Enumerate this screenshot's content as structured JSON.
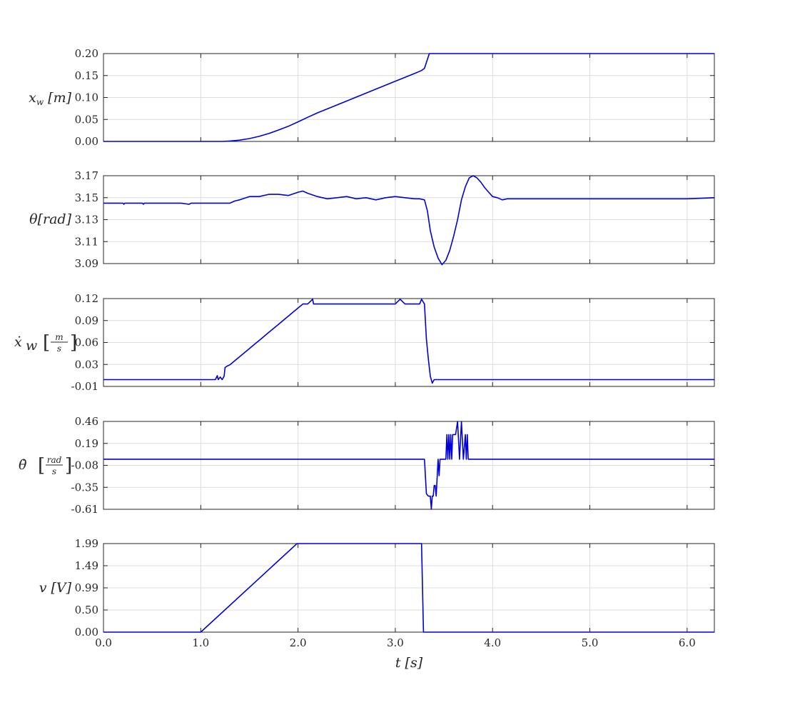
{
  "chart_data": [
    {
      "type": "line",
      "ylabel": {
        "sym": "x",
        "sub": "w",
        "unit": "[m]"
      },
      "ylim": [
        0.0,
        0.2
      ],
      "yticks": [
        "0.00",
        "0.05",
        "0.10",
        "0.15",
        "0.20"
      ],
      "xlim": [
        0,
        6.28
      ],
      "grid": true,
      "series": [
        {
          "color": "#0000d8",
          "x": [
            0,
            1.22,
            1.3,
            1.4,
            1.5,
            1.6,
            1.7,
            1.8,
            1.9,
            2.0,
            2.1,
            2.2,
            2.4,
            2.6,
            2.8,
            3.0,
            3.2,
            3.27,
            3.3,
            3.35,
            6.28
          ],
          "y": [
            0,
            0,
            0.001,
            0.003,
            0.0065,
            0.0115,
            0.018,
            0.026,
            0.0345,
            0.0445,
            0.055,
            0.065,
            0.083,
            0.101,
            0.119,
            0.137,
            0.155,
            0.1615,
            0.1665,
            0.2,
            0.2
          ]
        }
      ]
    },
    {
      "type": "line",
      "ylabel": {
        "sym": "θ",
        "unit": "[rad]"
      },
      "ylim": [
        3.09,
        3.17
      ],
      "yticks": [
        "3.09",
        "3.11",
        "3.13",
        "3.15",
        "3.17"
      ],
      "xlim": [
        0,
        6.28
      ],
      "grid": true,
      "series": [
        {
          "color": "#0000d8",
          "x": [
            0,
            0.2,
            0.21,
            0.22,
            0.4,
            0.41,
            0.42,
            0.6,
            0.8,
            0.88,
            0.9,
            1.0,
            1.1,
            1.2,
            1.3,
            1.35,
            1.4,
            1.5,
            1.6,
            1.7,
            1.8,
            1.9,
            2.0,
            2.05,
            2.1,
            2.2,
            2.3,
            2.4,
            2.5,
            2.6,
            2.7,
            2.8,
            2.9,
            3.0,
            3.1,
            3.2,
            3.25,
            3.3,
            3.33,
            3.36,
            3.4,
            3.44,
            3.48,
            3.52,
            3.56,
            3.6,
            3.64,
            3.68,
            3.72,
            3.76,
            3.8,
            3.84,
            3.88,
            3.92,
            3.96,
            4.0,
            4.05,
            4.1,
            4.15,
            4.2,
            4.3,
            4.5,
            6.0,
            6.28
          ],
          "y": [
            3.145,
            3.145,
            3.144,
            3.145,
            3.145,
            3.144,
            3.145,
            3.145,
            3.145,
            3.144,
            3.145,
            3.145,
            3.145,
            3.145,
            3.145,
            3.147,
            3.148,
            3.151,
            3.151,
            3.153,
            3.153,
            3.152,
            3.155,
            3.156,
            3.154,
            3.151,
            3.149,
            3.15,
            3.151,
            3.149,
            3.15,
            3.148,
            3.15,
            3.151,
            3.15,
            3.149,
            3.149,
            3.148,
            3.138,
            3.12,
            3.105,
            3.095,
            3.089,
            3.093,
            3.102,
            3.115,
            3.13,
            3.148,
            3.16,
            3.168,
            3.17,
            3.168,
            3.164,
            3.159,
            3.155,
            3.151,
            3.15,
            3.148,
            3.149,
            3.149,
            3.149,
            3.149,
            3.149,
            3.15
          ]
        }
      ]
    },
    {
      "type": "line",
      "ylabel": {
        "sym": "ẋ",
        "sub": "w",
        "unitNum": "m",
        "unitDen": "s"
      },
      "ylim": [
        -0.01,
        0.12
      ],
      "yticks": [
        "-0.01",
        "0.03",
        "0.06",
        "0.09",
        "0.12"
      ],
      "xlim": [
        0,
        6.28
      ],
      "grid": true,
      "series": [
        {
          "color": "#0000d8",
          "x": [
            0,
            1.15,
            1.17,
            1.18,
            1.2,
            1.22,
            1.24,
            1.25,
            1.27,
            1.3,
            1.35,
            1.4,
            1.45,
            1.5,
            1.55,
            1.6,
            1.65,
            1.7,
            1.75,
            1.8,
            1.85,
            1.9,
            1.95,
            2.0,
            2.05,
            2.1,
            2.15,
            2.16,
            2.2,
            2.25,
            2.3,
            2.4,
            2.5,
            2.6,
            2.7,
            2.8,
            2.9,
            3.0,
            3.05,
            3.1,
            3.15,
            3.2,
            3.25,
            3.27,
            3.3,
            3.32,
            3.34,
            3.36,
            3.38,
            3.4,
            3.45,
            3.5,
            6.28
          ],
          "y": [
            0,
            0,
            0.006,
            0,
            0.004,
            0,
            0.005,
            0.018,
            0.02,
            0.022,
            0.028,
            0.034,
            0.04,
            0.046,
            0.052,
            0.058,
            0.064,
            0.07,
            0.076,
            0.082,
            0.088,
            0.094,
            0.1,
            0.106,
            0.112,
            0.112,
            0.119,
            0.112,
            0.112,
            0.112,
            0.112,
            0.112,
            0.112,
            0.112,
            0.112,
            0.112,
            0.112,
            0.112,
            0.119,
            0.112,
            0.112,
            0.112,
            0.112,
            0.119,
            0.112,
            0.06,
            0.03,
            0.005,
            -0.005,
            0,
            0,
            0,
            0
          ]
        }
      ]
    },
    {
      "type": "line",
      "ylabel": {
        "sym": "θ̇",
        "unitNum": "rad",
        "unitDen": "s"
      },
      "ylim": [
        -0.61,
        0.46
      ],
      "yticks": [
        "-0.61",
        "-0.35",
        "-0.08",
        "0.19",
        "0.46"
      ],
      "xlim": [
        0,
        6.28
      ],
      "grid": true,
      "series": [
        {
          "color": "#0000d8",
          "x": [
            0,
            3.3,
            3.32,
            3.34,
            3.36,
            3.37,
            3.38,
            3.39,
            3.4,
            3.41,
            3.42,
            3.44,
            3.45,
            3.46,
            3.5,
            3.52,
            3.53,
            3.54,
            3.55,
            3.56,
            3.57,
            3.58,
            3.59,
            3.6,
            3.62,
            3.64,
            3.66,
            3.68,
            3.7,
            3.72,
            3.73,
            3.74,
            3.75,
            3.76,
            3.77,
            3.78,
            3.8,
            3.9,
            6.28
          ],
          "y": [
            0,
            0,
            -0.42,
            -0.45,
            -0.45,
            -0.61,
            -0.45,
            -0.45,
            -0.32,
            -0.32,
            -0.45,
            0,
            -0.2,
            0,
            0,
            0,
            0.3,
            0,
            0.3,
            0,
            0.3,
            0,
            0.3,
            0.3,
            0.3,
            0.46,
            0,
            0.46,
            0,
            0.3,
            0,
            0.3,
            0,
            0,
            0,
            0,
            0,
            0,
            0
          ]
        }
      ]
    },
    {
      "type": "line",
      "ylabel": {
        "sym": "v",
        "unit": "[V]"
      },
      "ylim": [
        0.0,
        1.99
      ],
      "yticks": [
        "0.00",
        "0.50",
        "0.99",
        "1.49",
        "1.99"
      ],
      "xlim": [
        0,
        6.28
      ],
      "xticks": [
        "0.0",
        "1.0",
        "2.0",
        "3.0",
        "4.0",
        "5.0",
        "6.0"
      ],
      "xlabel": {
        "sym": "t",
        "unit": "[s]"
      },
      "grid": true,
      "series": [
        {
          "color": "#0000d8",
          "x": [
            0,
            1.0,
            1.99,
            3.27,
            3.29,
            6.28
          ],
          "y": [
            0,
            0,
            1.99,
            1.99,
            0,
            0
          ]
        }
      ]
    }
  ]
}
